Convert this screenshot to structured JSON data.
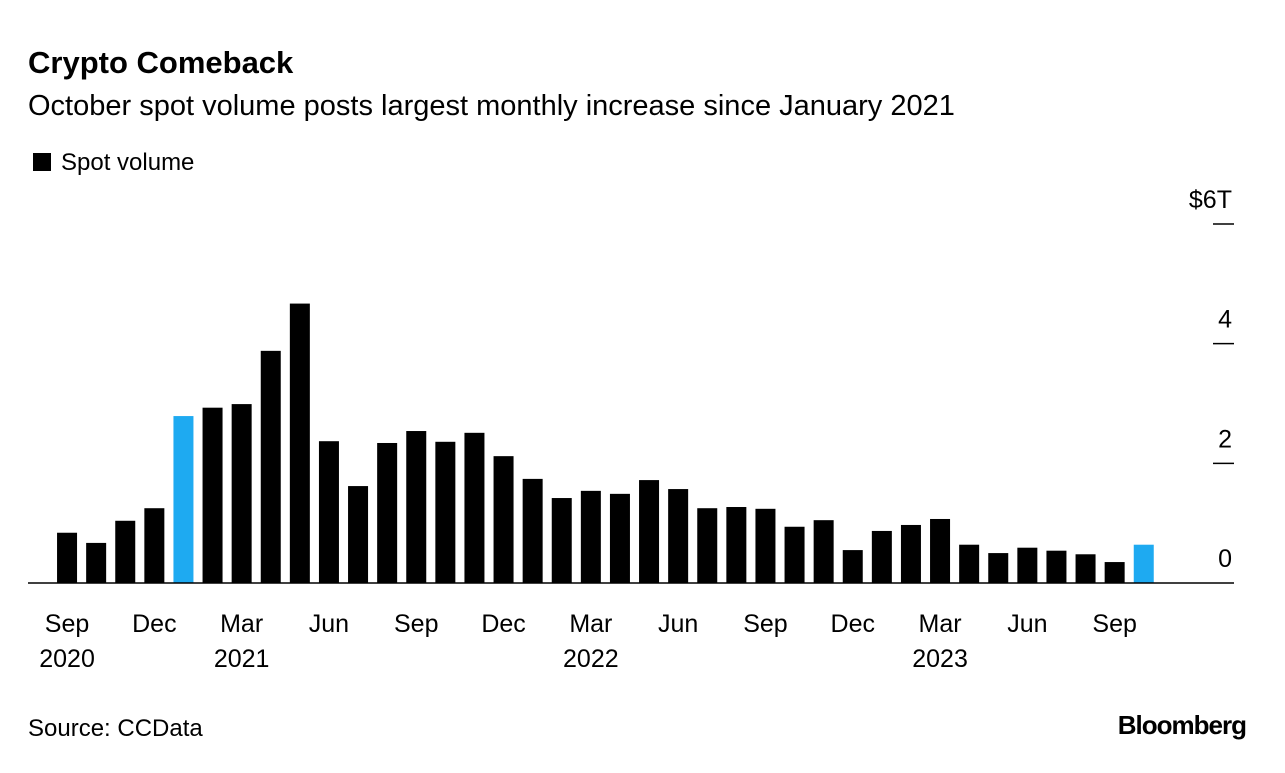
{
  "chart_data": {
    "type": "bar",
    "title": "Crypto Comeback",
    "subtitle": "October spot volume posts largest monthly increase since January 2021",
    "source": "Source: CCData",
    "brand": "Bloomberg",
    "categories": [
      "Sep",
      null,
      null,
      "Dec",
      null,
      null,
      "Mar",
      null,
      null,
      "Jun",
      null,
      null,
      "Sep",
      null,
      null,
      "Dec",
      null,
      null,
      "Mar",
      null,
      null,
      "Jun",
      null,
      null,
      "Sep",
      null,
      null,
      "Dec",
      null,
      null,
      "Mar",
      null,
      null,
      "Jun",
      null,
      null,
      "Sep",
      null
    ],
    "category_years": [
      "2020",
      null,
      null,
      null,
      null,
      null,
      "2021",
      null,
      null,
      null,
      null,
      null,
      null,
      null,
      null,
      null,
      null,
      null,
      "2022",
      null,
      null,
      null,
      null,
      null,
      null,
      null,
      null,
      null,
      null,
      null,
      "2023",
      null,
      null,
      null,
      null,
      null,
      null,
      null
    ],
    "series": [
      {
        "name": "Spot volume",
        "color": "#000000",
        "values": [
          0.84,
          0.67,
          1.04,
          1.25,
          2.79,
          2.93,
          2.99,
          3.88,
          4.67,
          2.37,
          1.62,
          2.34,
          2.54,
          2.36,
          2.51,
          2.12,
          1.74,
          1.42,
          1.54,
          1.49,
          1.72,
          1.57,
          1.25,
          1.27,
          1.24,
          0.94,
          1.05,
          0.55,
          0.87,
          0.97,
          1.07,
          0.64,
          0.5,
          0.59,
          0.54,
          0.48,
          0.35,
          0.64
        ],
        "colors": [
          "#000000",
          "#000000",
          "#000000",
          "#000000",
          "#1eaaf1",
          "#000000",
          "#000000",
          "#000000",
          "#000000",
          "#000000",
          "#000000",
          "#000000",
          "#000000",
          "#000000",
          "#000000",
          "#000000",
          "#000000",
          "#000000",
          "#000000",
          "#000000",
          "#000000",
          "#000000",
          "#000000",
          "#000000",
          "#000000",
          "#000000",
          "#000000",
          "#000000",
          "#000000",
          "#000000",
          "#000000",
          "#000000",
          "#000000",
          "#000000",
          "#000000",
          "#000000",
          "#000000",
          "#1eaaf1"
        ]
      }
    ],
    "ylim": [
      0,
      6
    ],
    "yticks": [
      0,
      2,
      4,
      {
        "value": 6,
        "label": "$6T"
      }
    ],
    "grid": false
  }
}
